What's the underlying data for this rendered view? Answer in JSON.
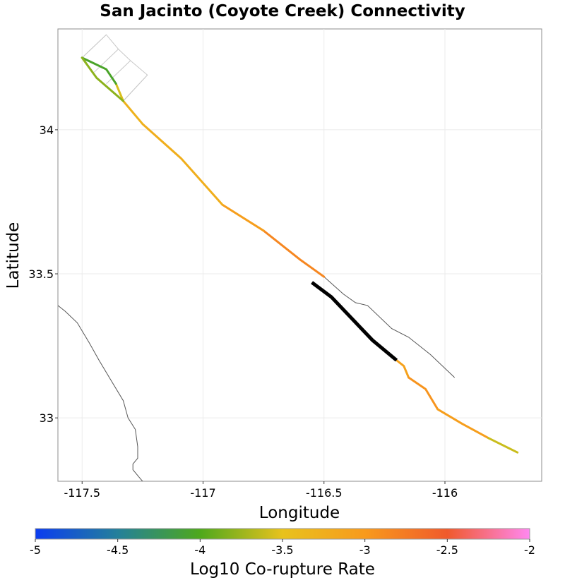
{
  "chart_data": {
    "type": "map",
    "title": "San Jacinto (Coyote Creek) Connectivity",
    "xlabel": "Longitude",
    "ylabel": "Latitude",
    "xlim": [
      -117.6,
      -115.6
    ],
    "ylim": [
      32.78,
      34.35
    ],
    "x_ticks": [
      {
        "value": -117.5,
        "label": "-117.5"
      },
      {
        "value": -117,
        "label": "-117"
      },
      {
        "value": -116.5,
        "label": "-116.5"
      },
      {
        "value": -116,
        "label": "-116"
      }
    ],
    "y_ticks": [
      {
        "value": 33,
        "label": "33"
      },
      {
        "value": 33.5,
        "label": "33.5"
      },
      {
        "value": 34,
        "label": "34"
      }
    ],
    "grid": true,
    "colorbar": {
      "label": "Log10 Co-rupture Rate",
      "min": -5,
      "max": -2,
      "ticks": [
        "-5",
        "-4.5",
        "-4",
        "-3.5",
        "-3",
        "-2.5",
        "-2"
      ],
      "stops": [
        {
          "value": -5,
          "color": "#0b3cf0"
        },
        {
          "value": -4.5,
          "color": "#24809a"
        },
        {
          "value": -4,
          "color": "#4ea81c"
        },
        {
          "value": -3.5,
          "color": "#e8c21c"
        },
        {
          "value": -3,
          "color": "#f89a1c"
        },
        {
          "value": -2.5,
          "color": "#f05a2c"
        },
        {
          "value": -2,
          "color": "#ff88f0"
        }
      ]
    },
    "source_section": {
      "name": "San Jacinto (Coyote Creek)",
      "color": "#000000",
      "points": [
        [
          -116.55,
          33.47
        ],
        [
          -116.47,
          33.42
        ],
        [
          -116.3,
          33.27
        ],
        [
          -116.2,
          33.2
        ]
      ]
    },
    "sections": [
      {
        "rate": -3.1,
        "points": [
          [
            -116.2,
            33.2
          ],
          [
            -116.17,
            33.18
          ],
          [
            -116.15,
            33.14
          ]
        ]
      },
      {
        "rate": -2.95,
        "points": [
          [
            -116.15,
            33.14
          ],
          [
            -116.08,
            33.1
          ],
          [
            -116.03,
            33.03
          ]
        ]
      },
      {
        "rate": -3.05,
        "points": [
          [
            -116.03,
            33.03
          ],
          [
            -115.93,
            32.98
          ],
          [
            -115.82,
            32.93
          ]
        ]
      },
      {
        "rate": -3.6,
        "points": [
          [
            -115.82,
            32.93
          ],
          [
            -115.7,
            32.88
          ]
        ]
      },
      {
        "rate": -2.85,
        "points": [
          [
            -116.5,
            33.49
          ],
          [
            -116.6,
            33.55
          ],
          [
            -116.75,
            33.65
          ]
        ]
      },
      {
        "rate": -3.05,
        "points": [
          [
            -116.75,
            33.65
          ],
          [
            -116.92,
            33.74
          ]
        ]
      },
      {
        "rate": -3.25,
        "points": [
          [
            -116.92,
            33.74
          ],
          [
            -117.09,
            33.9
          ],
          [
            -117.25,
            34.02
          ]
        ]
      },
      {
        "rate": -3.3,
        "points": [
          [
            -117.25,
            34.02
          ],
          [
            -117.33,
            34.1
          ]
        ]
      },
      {
        "rate": -3.55,
        "points": [
          [
            -117.33,
            34.1
          ],
          [
            -117.36,
            34.16
          ]
        ]
      },
      {
        "rate": -4.05,
        "points": [
          [
            -117.36,
            34.16
          ],
          [
            -117.4,
            34.21
          ],
          [
            -117.5,
            34.25
          ]
        ]
      },
      {
        "rate": -3.8,
        "points": [
          [
            -117.33,
            34.1
          ],
          [
            -117.44,
            34.18
          ],
          [
            -117.5,
            34.25
          ]
        ]
      }
    ],
    "context_lines": [
      {
        "name": "coastline",
        "points": [
          [
            -117.6,
            33.39
          ],
          [
            -117.57,
            33.37
          ],
          [
            -117.52,
            33.33
          ],
          [
            -117.47,
            33.26
          ],
          [
            -117.43,
            33.2
          ],
          [
            -117.38,
            33.13
          ],
          [
            -117.33,
            33.06
          ],
          [
            -117.31,
            33.0
          ],
          [
            -117.28,
            32.96
          ],
          [
            -117.27,
            32.9
          ],
          [
            -117.27,
            32.86
          ],
          [
            -117.29,
            32.84
          ],
          [
            -117.29,
            32.82
          ],
          [
            -117.26,
            32.79
          ],
          [
            -117.25,
            32.78
          ]
        ]
      },
      {
        "name": "fault-trace",
        "points": [
          [
            -116.5,
            33.49
          ],
          [
            -116.42,
            33.43
          ],
          [
            -116.37,
            33.4
          ],
          [
            -116.32,
            33.39
          ],
          [
            -116.22,
            33.31
          ],
          [
            -116.15,
            33.28
          ],
          [
            -116.06,
            33.22
          ],
          [
            -115.96,
            33.14
          ]
        ]
      },
      {
        "name": "grid-cells",
        "points": [
          [
            -117.5,
            34.25
          ],
          [
            -117.4,
            34.33
          ],
          [
            -117.35,
            34.28
          ],
          [
            -117.3,
            34.24
          ],
          [
            -117.23,
            34.19
          ],
          [
            -117.33,
            34.1
          ]
        ]
      },
      {
        "name": "grid-cells-2",
        "points": [
          [
            -117.4,
            34.33
          ],
          [
            -117.5,
            34.25
          ]
        ]
      },
      {
        "name": "grid-cells-3",
        "points": [
          [
            -117.35,
            34.28
          ],
          [
            -117.45,
            34.2
          ]
        ]
      },
      {
        "name": "grid-cells-4",
        "points": [
          [
            -117.3,
            34.24
          ],
          [
            -117.4,
            34.16
          ]
        ]
      },
      {
        "name": "grid-cells-5",
        "points": [
          [
            -117.23,
            34.19
          ],
          [
            -117.33,
            34.1
          ]
        ]
      }
    ]
  }
}
